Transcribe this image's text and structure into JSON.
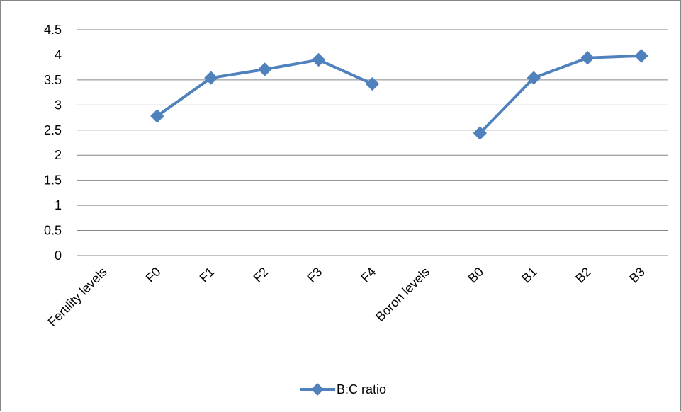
{
  "chart_data": {
    "type": "line",
    "title": "",
    "xlabel": "",
    "ylabel": "",
    "categories": [
      "Fertility levels",
      "F0",
      "F1",
      "F2",
      "F3",
      "F4",
      "Boron levels",
      "B0",
      "B1",
      "B2",
      "B3"
    ],
    "series": [
      {
        "name": "B:C ratio",
        "values": [
          null,
          2.78,
          3.54,
          3.71,
          3.9,
          3.42,
          null,
          2.44,
          3.54,
          3.94,
          3.98
        ],
        "color": "#4F81BD",
        "marker": "diamond"
      }
    ],
    "ylim": [
      0,
      4.5
    ],
    "yticks": [
      "0",
      "0.5",
      "1",
      "1.5",
      "2",
      "2.5",
      "3",
      "3.5",
      "4",
      "4.5"
    ],
    "grid": true,
    "legend": "bottom"
  }
}
